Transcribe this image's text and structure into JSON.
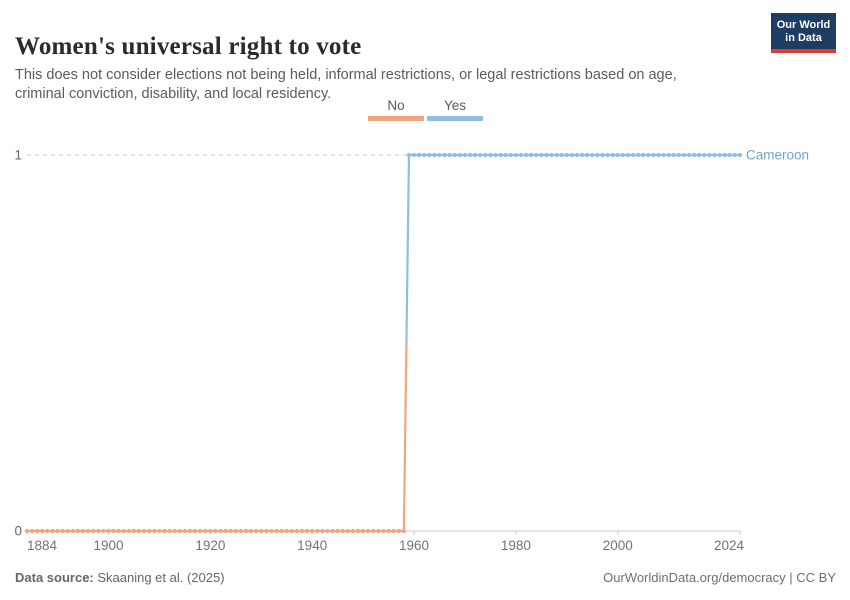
{
  "header": {
    "subtitle": "This does not consider elections not being held, informal restrictions, or legal restrictions based on age, criminal conviction, disability, and local residency.",
    "logo": {
      "line1": "Our World",
      "line2": "in Data"
    }
  },
  "legend": {
    "items": [
      {
        "label": "No",
        "color": "#f2a47e"
      },
      {
        "label": "Yes",
        "color": "#8cc0dc"
      }
    ]
  },
  "chart_data": {
    "type": "line",
    "title": "Women's universal right to vote",
    "entity": "Cameroon",
    "entity_label_color": "#6fa7cd",
    "xlim": [
      1884,
      2024
    ],
    "ylim": [
      0,
      1
    ],
    "x_ticks": [
      1884,
      1900,
      1920,
      1940,
      1960,
      1980,
      2000,
      2024
    ],
    "y_ticks": [
      0,
      1
    ],
    "gridline": "dashed horizontal line at y = 1",
    "marker": "circle at every year",
    "series": [
      {
        "name": "Cameroon",
        "segments": [
          {
            "category": "No",
            "value": 0,
            "from_year": 1884,
            "to_year": 1958,
            "color": "#f2a47e"
          },
          {
            "category": "Yes",
            "value": 1,
            "from_year": 1959,
            "to_year": 2024,
            "color": "#8cc0dc"
          }
        ]
      }
    ],
    "colors": {
      "axis": "#cccccc",
      "grid": "#cccccc",
      "tick_label": "#737373",
      "y_label": "#666666"
    }
  },
  "footer": {
    "source_label": "Data source:",
    "source_text": " Skaaning et al. (2025)",
    "right_text": "OurWorldinData.org/democracy | CC BY"
  }
}
